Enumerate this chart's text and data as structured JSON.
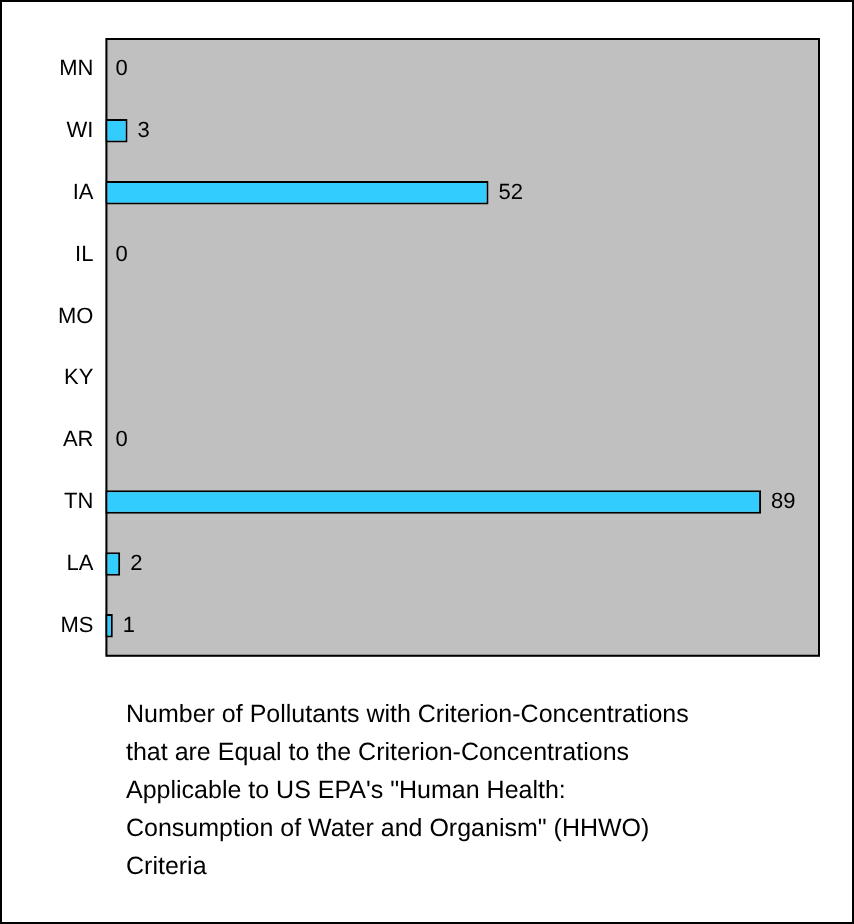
{
  "chart_data": {
    "type": "bar",
    "orientation": "horizontal",
    "title": "Number of Pollutants with Criterion-Concentrations that are Equal to the Criterion-Concentrations Applicable to US EPA's  \"Human Health: Consumption of Water and Organism\" (HHWO) Criteria",
    "categories": [
      "MN",
      "WI",
      "IA",
      "IL",
      "MO",
      "KY",
      "AR",
      "TN",
      "LA",
      "MS"
    ],
    "values": [
      0,
      3,
      52,
      0,
      null,
      null,
      0,
      89,
      2,
      1
    ],
    "color": "#33ccff",
    "xlim": [
      0,
      97
    ],
    "data_labels": true,
    "grid": false,
    "legend": false
  }
}
